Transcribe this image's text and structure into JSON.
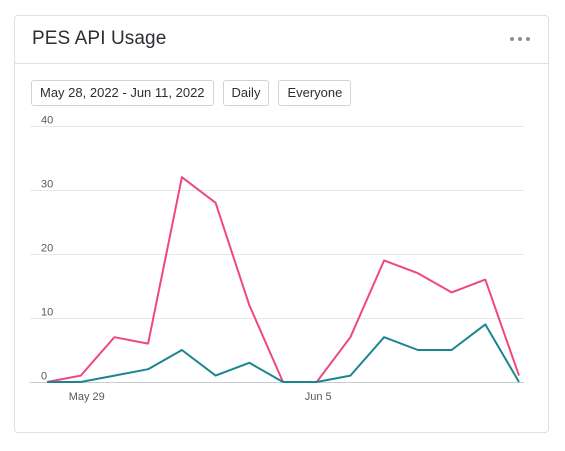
{
  "widget": {
    "title": "PES API Usage",
    "menu_icon": "more-horizontal-icon"
  },
  "filters": {
    "date_range": "May 28, 2022 - Jun 11, 2022",
    "granularity": "Daily",
    "audience": "Everyone"
  },
  "chart_data": {
    "type": "line",
    "x": [
      "May 28",
      "May 29",
      "May 30",
      "May 31",
      "Jun 1",
      "Jun 2",
      "Jun 3",
      "Jun 4",
      "Jun 5",
      "Jun 6",
      "Jun 7",
      "Jun 8",
      "Jun 9",
      "Jun 10",
      "Jun 11"
    ],
    "x_tick_labels": [
      {
        "index": 1,
        "label": "May 29"
      },
      {
        "index": 8,
        "label": "Jun 5"
      }
    ],
    "y_ticks": [
      0,
      10,
      20,
      30,
      40
    ],
    "ylim": [
      0,
      40
    ],
    "grid": true,
    "series": [
      {
        "color": "#f0487b",
        "values": [
          0,
          1,
          7,
          6,
          32,
          28,
          12,
          0,
          0,
          7,
          19,
          17,
          14,
          16,
          1
        ]
      },
      {
        "color": "#1a8590",
        "values": [
          0,
          0,
          1,
          2,
          5,
          1,
          3,
          0,
          0,
          1,
          7,
          5,
          5,
          9,
          0
        ]
      }
    ]
  }
}
